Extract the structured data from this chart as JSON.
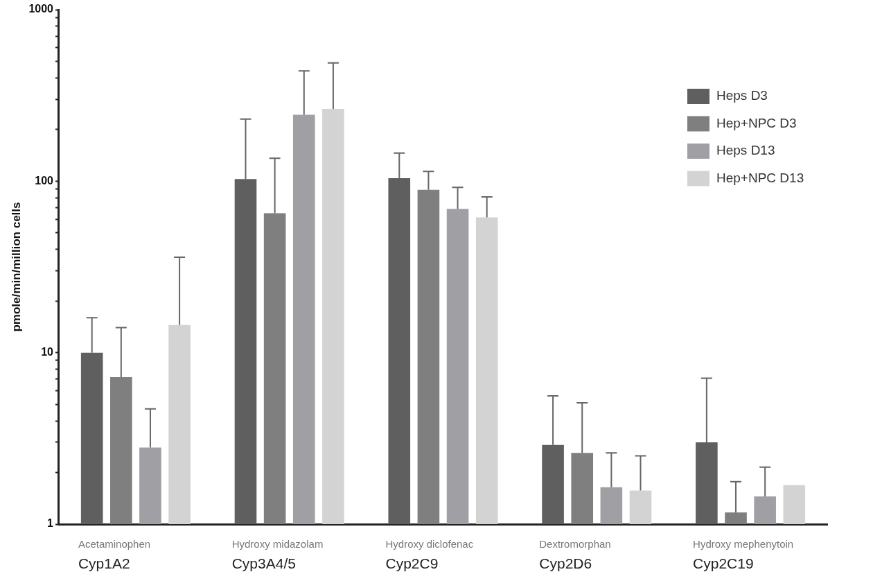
{
  "chart_data": {
    "type": "bar",
    "ylabel": "pmole/min/million cells",
    "categories": [
      "Acetaminophen\nCyp1A2",
      "Hydroxy midazolam\nCyp3A4/5",
      "Hydroxy diclofenac\nCyp2C9",
      "Dextromorphan\nCyp2D6",
      "Hydroxy mephenytoin\nCyp2C19"
    ],
    "series": [
      {
        "name": "Heps D3",
        "color": "#5f5f5f",
        "values": [
          10,
          103,
          104,
          2.9,
          3.0
        ],
        "errors": [
          [
            10,
            16
          ],
          [
            103,
            230
          ],
          [
            104,
            146
          ],
          [
            2.9,
            5.6
          ],
          [
            3.0,
            7.1
          ]
        ]
      },
      {
        "name": "Hep+NPC D3",
        "color": "#7f7f7f",
        "values": [
          7.2,
          65,
          89,
          2.6,
          1.17
        ],
        "errors": [
          [
            7.2,
            14
          ],
          [
            65,
            136
          ],
          [
            89,
            114
          ],
          [
            2.6,
            5.1
          ],
          [
            1.17,
            1.77
          ]
        ]
      },
      {
        "name": "Heps D13",
        "color": "#a0a0a4",
        "values": [
          2.8,
          244,
          69,
          1.64,
          1.45
        ],
        "errors": [
          [
            2.8,
            4.7
          ],
          [
            244,
            440
          ],
          [
            69,
            92
          ],
          [
            1.64,
            2.6
          ],
          [
            1.45,
            2.15
          ]
        ]
      },
      {
        "name": "Hep+NPC D13",
        "color": "#d3d3d3",
        "values": [
          14.5,
          264,
          61.5,
          1.57,
          1.69
        ],
        "errors": [
          [
            14.5,
            36
          ],
          [
            264,
            490
          ],
          [
            61.5,
            81
          ],
          [
            1.57,
            2.5
          ],
          null
        ]
      }
    ],
    "log": true,
    "ylim": [
      1,
      1000
    ],
    "yticks": [
      1,
      {
        "value": 2,
        "label": null
      },
      {
        "value": 3,
        "label": null
      },
      {
        "value": 4,
        "label": null
      },
      {
        "value": 5,
        "label": null
      },
      {
        "value": 6,
        "label": null
      },
      {
        "value": 7,
        "label": null
      },
      {
        "value": 8,
        "label": null
      },
      {
        "value": 9,
        "label": null
      },
      10,
      {
        "value": 20,
        "label": null
      },
      {
        "value": 30,
        "label": null
      },
      {
        "value": 40,
        "label": null
      },
      {
        "value": 50,
        "label": null
      },
      {
        "value": 60,
        "label": null
      },
      {
        "value": 70,
        "label": null
      },
      {
        "value": 80,
        "label": null
      },
      {
        "value": 90,
        "label": null
      },
      100,
      {
        "value": 200,
        "label": null
      },
      {
        "value": 300,
        "label": null
      },
      {
        "value": 400,
        "label": null
      },
      {
        "value": 500,
        "label": null
      },
      {
        "value": 600,
        "label": null
      },
      {
        "value": 700,
        "label": null
      },
      {
        "value": 800,
        "label": null
      },
      {
        "value": 900,
        "label": null
      },
      1000
    ],
    "grid": false,
    "legend": "right"
  }
}
